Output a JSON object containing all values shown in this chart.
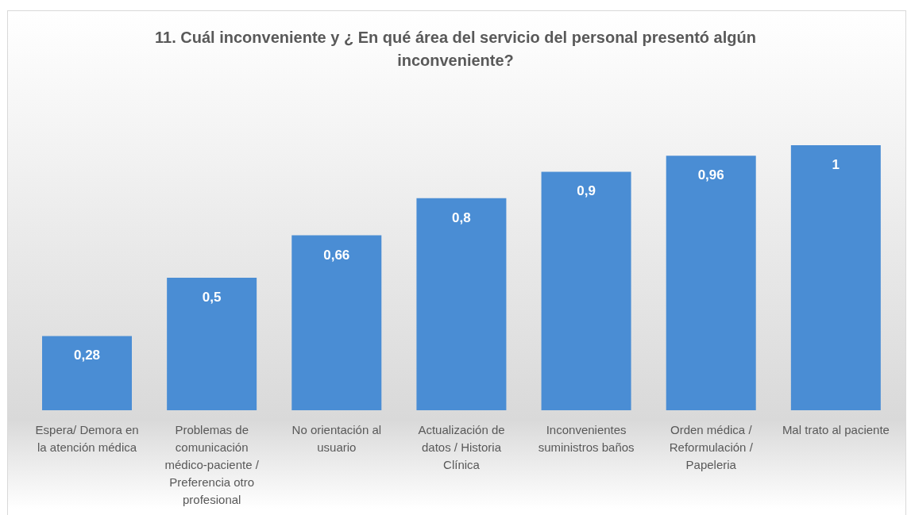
{
  "chart_data": {
    "type": "bar",
    "title": "11. Cuál inconveniente y ¿ En qué área del servicio del personal presentó algún inconveniente?",
    "categories": [
      "Espera/ Demora en la atención médica",
      "Problemas de comunicación médico-paciente / Preferencia otro profesional",
      "No orientación al usuario",
      "Actualización de datos / Historia Clínica",
      "Inconvenientes suministros baños",
      "Orden médica / Reformulación / Papeleria",
      "Mal trato al paciente"
    ],
    "values": [
      0.28,
      0.5,
      0.66,
      0.8,
      0.9,
      0.96,
      1
    ],
    "value_labels": [
      "0,28",
      "0,5",
      "0,66",
      "0,8",
      "0,9",
      "0,96",
      "1"
    ],
    "color": "#4a8dd4",
    "tick_labels": "x"
  }
}
